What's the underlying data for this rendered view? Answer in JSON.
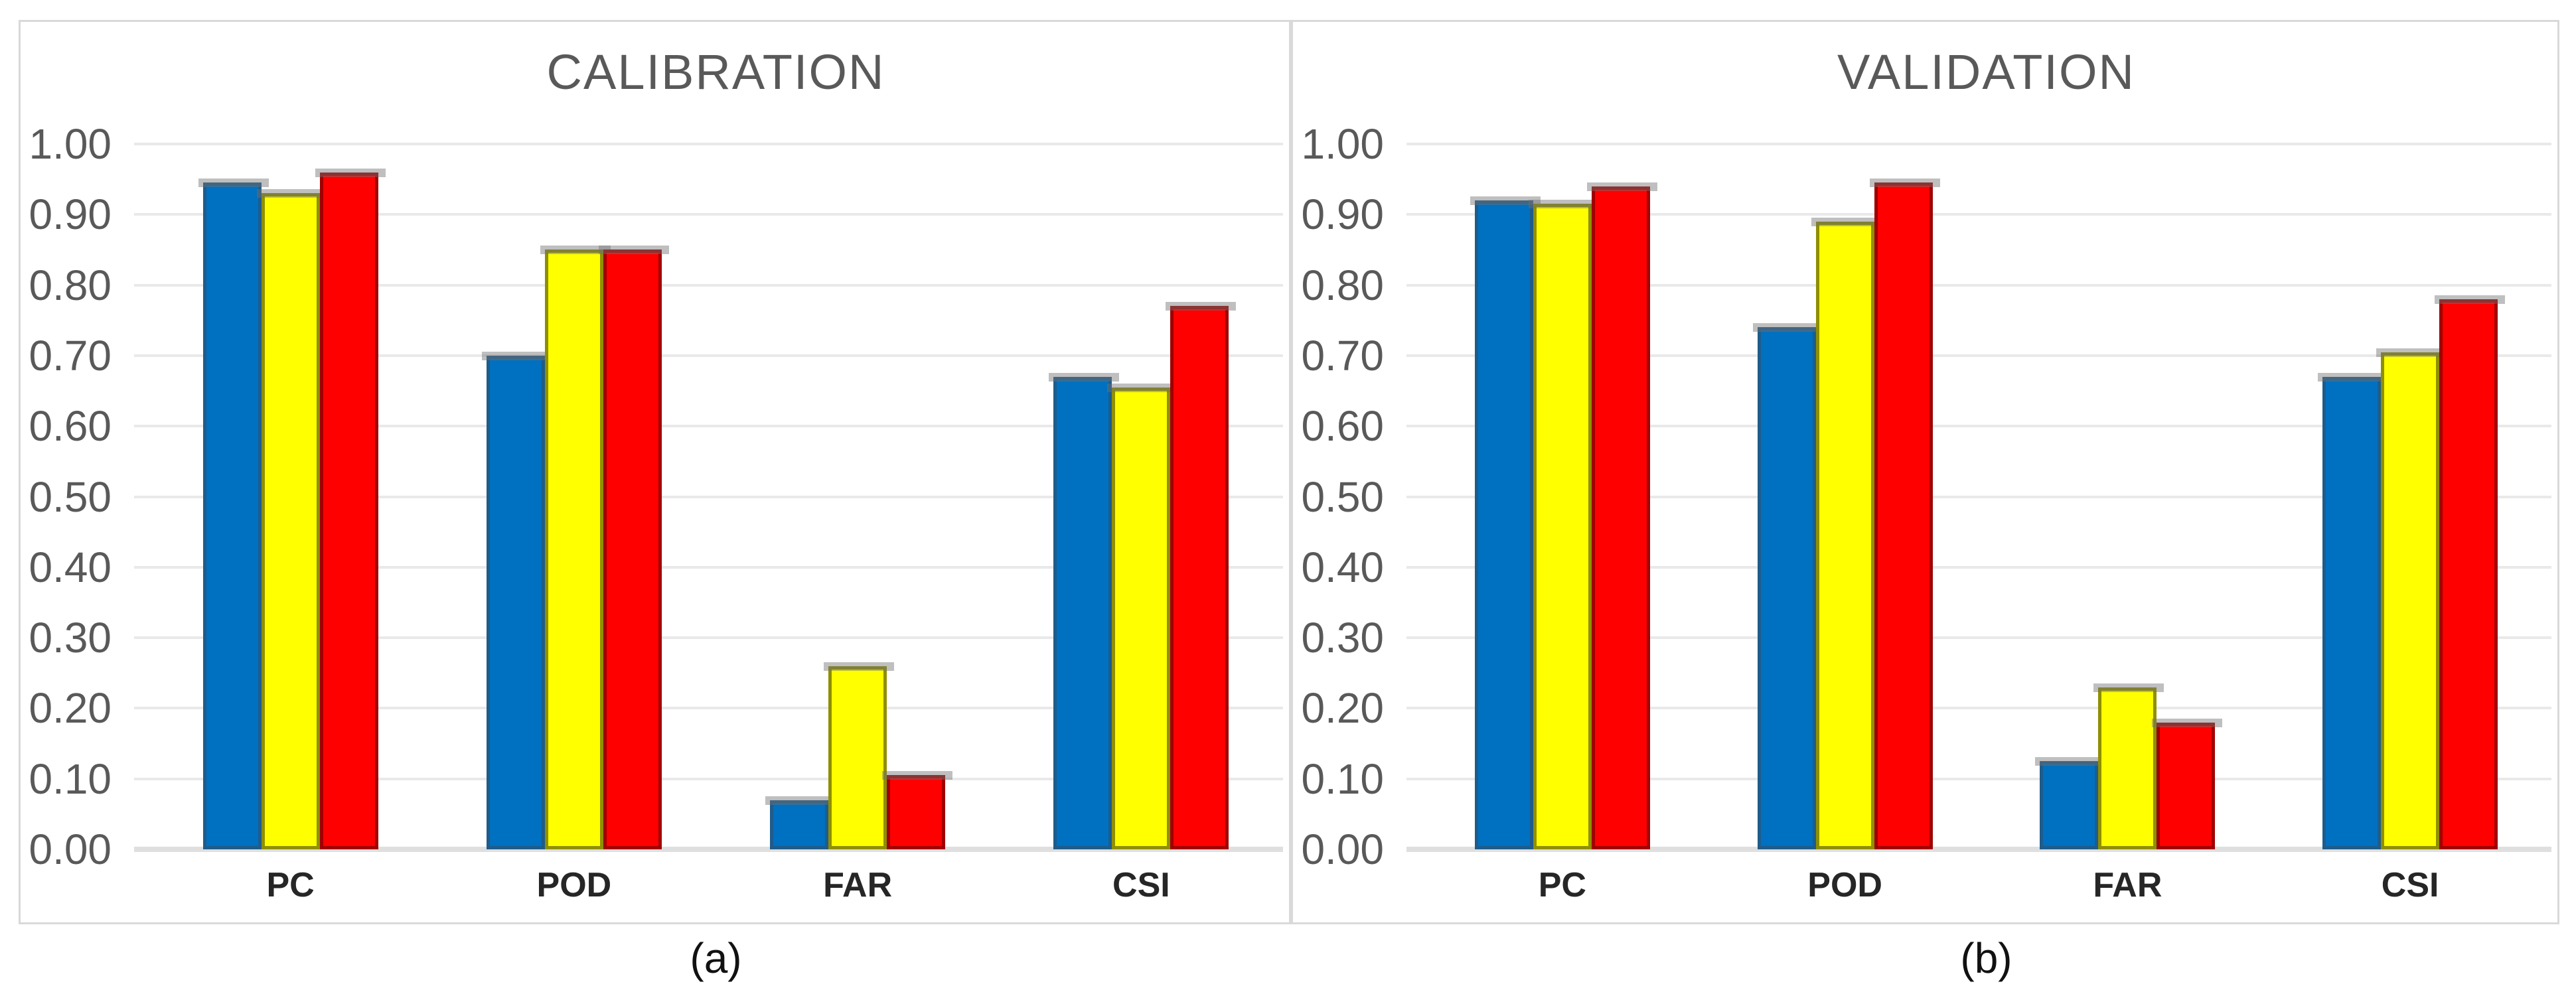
{
  "figure": {
    "background": "#ffffff",
    "panel_border_color": "#D9D9D9",
    "gridline_color": "#E9E9E9",
    "baseline_color": "#DFDFDF",
    "tick_label_color": "#595959",
    "title_color": "#595959",
    "category_label_color": "#262626",
    "caption_color": "#111111"
  },
  "chart_data": [
    {
      "type": "bar",
      "title": "CALIBRATION",
      "caption": "(a)",
      "categories": [
        "PC",
        "POD",
        "FAR",
        "CSI"
      ],
      "series": [
        {
          "name": "blue",
          "fill": "#0070C0",
          "border": "#1F5C8B",
          "values": [
            0.945,
            0.7,
            0.07,
            0.67
          ]
        },
        {
          "name": "yellow",
          "fill": "#FFFF00",
          "border": "#8F8F00",
          "values": [
            0.93,
            0.85,
            0.26,
            0.655
          ]
        },
        {
          "name": "red",
          "fill": "#FF0000",
          "border": "#A00000",
          "values": [
            0.96,
            0.85,
            0.105,
            0.77
          ]
        }
      ],
      "ylim": [
        0.0,
        1.0
      ],
      "ytick_step": 0.1,
      "yticks": [
        "1.00",
        "0.90",
        "0.80",
        "0.70",
        "0.60",
        "0.50",
        "0.40",
        "0.30",
        "0.20",
        "0.10",
        "0.00"
      ],
      "grid": true,
      "legend": "none",
      "xlabel": "",
      "ylabel": ""
    },
    {
      "type": "bar",
      "title": "VALIDATION",
      "caption": "(b)",
      "categories": [
        "PC",
        "POD",
        "FAR",
        "CSI"
      ],
      "series": [
        {
          "name": "blue",
          "fill": "#0070C0",
          "border": "#1F5C8B",
          "values": [
            0.92,
            0.74,
            0.125,
            0.67
          ]
        },
        {
          "name": "yellow",
          "fill": "#FFFF00",
          "border": "#8F8F00",
          "values": [
            0.915,
            0.89,
            0.23,
            0.705
          ]
        },
        {
          "name": "red",
          "fill": "#FF0000",
          "border": "#A00000",
          "values": [
            0.94,
            0.945,
            0.18,
            0.78
          ]
        }
      ],
      "ylim": [
        0.0,
        1.0
      ],
      "ytick_step": 0.1,
      "yticks": [
        "1.00",
        "0.90",
        "0.80",
        "0.70",
        "0.60",
        "0.50",
        "0.40",
        "0.30",
        "0.20",
        "0.10",
        "0.00"
      ],
      "grid": true,
      "legend": "none",
      "xlabel": "",
      "ylabel": ""
    }
  ]
}
